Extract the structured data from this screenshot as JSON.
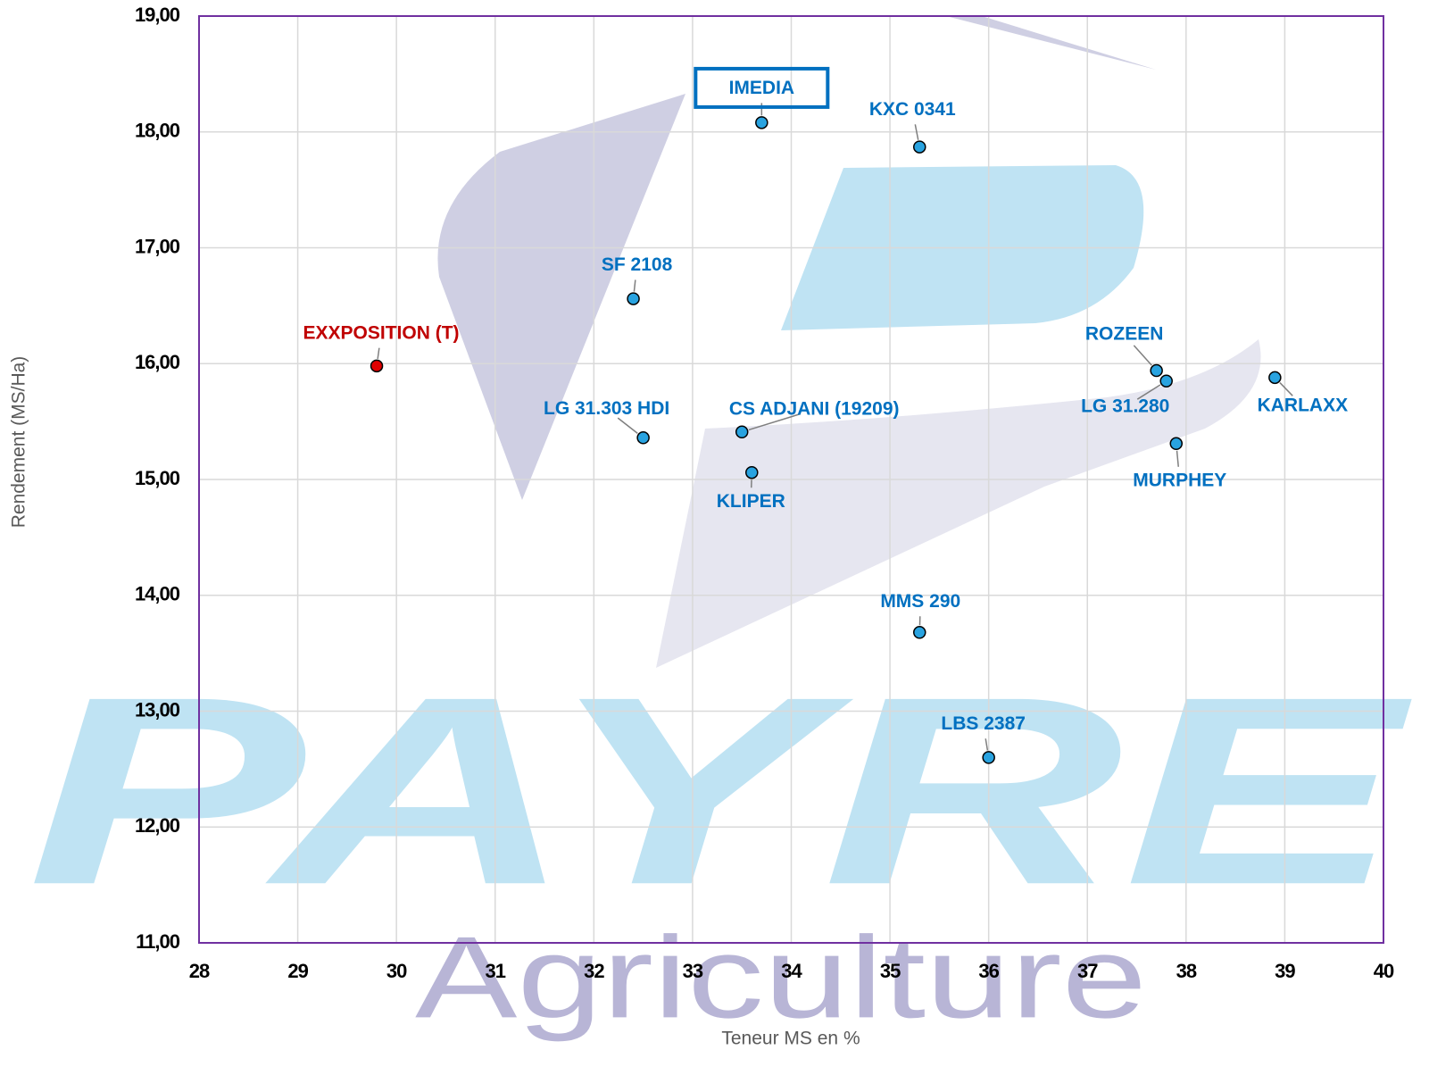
{
  "chart_data": {
    "type": "scatter",
    "x_label": "Teneur MS en %",
    "y_label": "Rendement  (MS/Ha)",
    "watermark": {
      "logo": "PAYRE",
      "subtitle": "Agriculture"
    },
    "xlim": [
      28,
      40
    ],
    "xticks": [
      28,
      29,
      30,
      31,
      32,
      33,
      34,
      35,
      36,
      37,
      38,
      39,
      40
    ],
    "ylim": [
      11,
      19
    ],
    "yticks": [
      {
        "value": 11,
        "label": "11,00"
      },
      {
        "value": 12,
        "label": "12,00"
      },
      {
        "value": 13,
        "label": "13,00"
      },
      {
        "value": 14,
        "label": "14,00"
      },
      {
        "value": 15,
        "label": "15,00"
      },
      {
        "value": 16,
        "label": "16,00"
      },
      {
        "value": 17,
        "label": "17,00"
      },
      {
        "value": 18,
        "label": "18,00"
      },
      {
        "value": 19,
        "label": "19,00"
      }
    ],
    "grid": true,
    "point_labels": [
      "IMEDIA",
      "KXC 0341",
      "SF 2108",
      "EXXPOSITION (T)",
      "LG 31.303  HDI",
      "CS ADJANI (19209)",
      "KLIPER",
      "ROZEEN",
      "LG 31.280",
      "MURPHEY",
      "KARLAXX",
      "MMS 290",
      "LBS 2387"
    ],
    "x": [
      33.7,
      35.3,
      32.4,
      29.8,
      32.5,
      33.5,
      33.6,
      37.7,
      37.8,
      37.9,
      38.9,
      35.3,
      36.0
    ],
    "values": [
      18.08,
      17.87,
      16.56,
      15.98,
      15.36,
      15.41,
      15.06,
      15.94,
      15.85,
      15.31,
      15.88,
      13.68,
      12.6
    ],
    "colors": [
      "#29a3e0",
      "#29a3e0",
      "#29a3e0",
      "#e00000",
      "#29a3e0",
      "#29a3e0",
      "#29a3e0",
      "#29a3e0",
      "#29a3e0",
      "#29a3e0",
      "#29a3e0",
      "#29a3e0",
      "#29a3e0"
    ],
    "label_colors": [
      "#0070c0",
      "#0070c0",
      "#0070c0",
      "#c00000",
      "#0070c0",
      "#0070c0",
      "#0070c0",
      "#0070c0",
      "#0070c0",
      "#0070c0",
      "#0070c0",
      "#0070c0",
      "#0070c0"
    ],
    "highlight": [
      0
    ]
  }
}
